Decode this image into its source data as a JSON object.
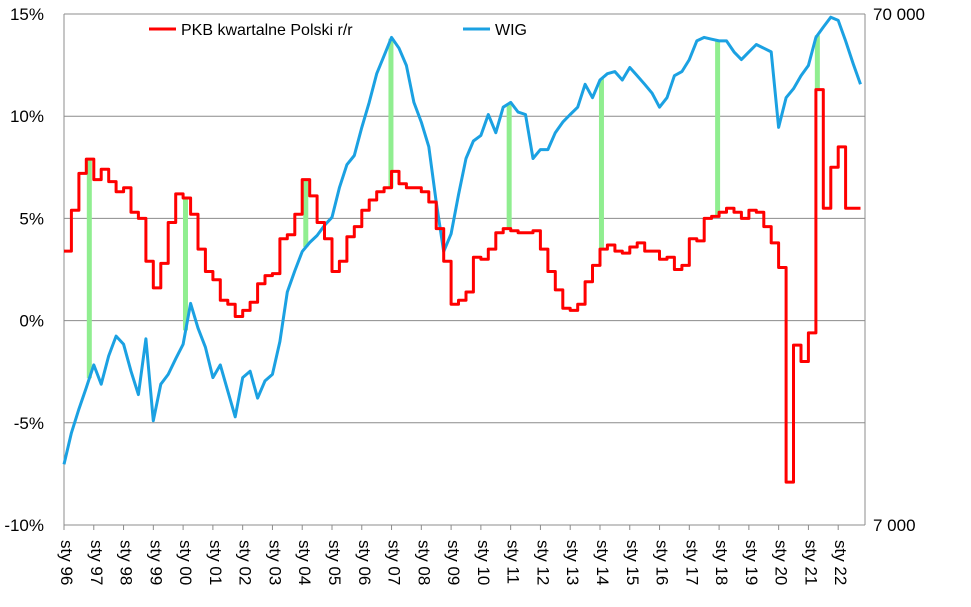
{
  "chart_data": {
    "type": "line",
    "title": "",
    "legend": [
      {
        "name": "PKB kwartalne Polski r/r",
        "color": "#ff0000"
      },
      {
        "name": "WIG",
        "color": "#1ba1e2"
      }
    ],
    "legend_placement": "top",
    "left_axis": {
      "ylim": [
        -10,
        15
      ],
      "ticks": [
        "-10%",
        "-5%",
        "0%",
        "5%",
        "10%",
        "15%"
      ],
      "tick_values": [
        -10,
        -5,
        0,
        5,
        10,
        15
      ]
    },
    "right_axis": {
      "scale": "log",
      "ylim": [
        7000,
        70000
      ],
      "ticks": [
        "7 000",
        "70 000"
      ],
      "tick_values": [
        7000,
        70000
      ]
    },
    "x_axis": {
      "range": [
        1996.0,
        2022.9
      ],
      "ticks": [
        "sty 96",
        "sty 97",
        "sty 98",
        "sty 99",
        "sty 00",
        "sty 01",
        "sty 02",
        "sty 03",
        "sty 04",
        "sty 05",
        "sty 06",
        "sty 07",
        "sty 08",
        "sty 09",
        "sty 10",
        "sty 11",
        "sty 12",
        "sty 13",
        "sty 14",
        "sty 15",
        "sty 16",
        "sty 17",
        "sty 18",
        "sty 19",
        "sty 20",
        "sty 21",
        "sty 22"
      ],
      "tick_values": [
        1996,
        1997,
        1998,
        1999,
        2000,
        2001,
        2002,
        2003,
        2004,
        2005,
        2006,
        2007,
        2008,
        2009,
        2010,
        2011,
        2012,
        2013,
        2014,
        2015,
        2016,
        2017,
        2018,
        2019,
        2020,
        2021,
        2022
      ]
    },
    "grid": "horizontal",
    "series": [
      {
        "name": "PKB kwartalne Polski r/r",
        "axis": "left",
        "color": "#ff0000",
        "step": true,
        "x": [
          1996.0,
          1996.25,
          1996.5,
          1996.75,
          1997.0,
          1997.25,
          1997.5,
          1997.75,
          1998.0,
          1998.25,
          1998.5,
          1998.75,
          1999.0,
          1999.25,
          1999.5,
          1999.75,
          2000.0,
          2000.25,
          2000.5,
          2000.75,
          2001.0,
          2001.25,
          2001.5,
          2001.75,
          2002.0,
          2002.25,
          2002.5,
          2002.75,
          2003.0,
          2003.25,
          2003.5,
          2003.75,
          2004.0,
          2004.25,
          2004.5,
          2004.75,
          2005.0,
          2005.25,
          2005.5,
          2005.75,
          2006.0,
          2006.25,
          2006.5,
          2006.75,
          2007.0,
          2007.25,
          2007.5,
          2007.75,
          2008.0,
          2008.25,
          2008.5,
          2008.75,
          2009.0,
          2009.25,
          2009.5,
          2009.75,
          2010.0,
          2010.25,
          2010.5,
          2010.75,
          2011.0,
          2011.25,
          2011.5,
          2011.75,
          2012.0,
          2012.25,
          2012.5,
          2012.75,
          2013.0,
          2013.25,
          2013.5,
          2013.75,
          2014.0,
          2014.25,
          2014.5,
          2014.75,
          2015.0,
          2015.25,
          2015.5,
          2015.75,
          2016.0,
          2016.25,
          2016.5,
          2016.75,
          2017.0,
          2017.25,
          2017.5,
          2017.75,
          2018.0,
          2018.25,
          2018.5,
          2018.75,
          2019.0,
          2019.25,
          2019.5,
          2019.75,
          2020.0,
          2020.25,
          2020.5,
          2020.75,
          2021.0,
          2021.25,
          2021.5,
          2021.75,
          2022.0,
          2022.25,
          2022.5
        ],
        "values": [
          3.4,
          5.4,
          7.2,
          7.9,
          6.9,
          7.4,
          6.8,
          6.3,
          6.5,
          5.3,
          5.0,
          2.9,
          1.6,
          2.8,
          4.8,
          6.2,
          6.0,
          5.2,
          3.5,
          2.4,
          2.0,
          1.0,
          0.8,
          0.2,
          0.5,
          0.9,
          1.8,
          2.2,
          2.3,
          4.0,
          4.2,
          5.2,
          6.9,
          6.1,
          4.8,
          4.0,
          2.4,
          2.9,
          4.1,
          4.6,
          5.4,
          5.9,
          6.3,
          6.5,
          7.3,
          6.7,
          6.5,
          6.5,
          6.3,
          5.8,
          4.5,
          2.9,
          0.8,
          1.0,
          1.4,
          3.1,
          3.0,
          3.5,
          4.3,
          4.5,
          4.4,
          4.3,
          4.3,
          4.4,
          3.5,
          2.4,
          1.5,
          0.6,
          0.5,
          0.8,
          1.9,
          2.7,
          3.5,
          3.7,
          3.4,
          3.3,
          3.6,
          3.8,
          3.4,
          3.4,
          3.0,
          3.1,
          2.5,
          2.7,
          4.0,
          3.9,
          5.0,
          5.1,
          5.3,
          5.5,
          5.3,
          5.0,
          5.4,
          5.3,
          4.6,
          3.8,
          2.6,
          -7.9,
          -1.2,
          -2.0,
          -0.6,
          11.3,
          5.5,
          7.5,
          8.5,
          5.5,
          5.5
        ]
      },
      {
        "name": "WIG",
        "axis": "right",
        "color": "#1ba1e2",
        "x": [
          1996.0,
          1996.25,
          1996.5,
          1996.75,
          1997.0,
          1997.25,
          1997.5,
          1997.75,
          1998.0,
          1998.25,
          1998.5,
          1998.75,
          1999.0,
          1999.25,
          1999.5,
          1999.75,
          2000.0,
          2000.25,
          2000.5,
          2000.75,
          2001.0,
          2001.25,
          2001.5,
          2001.75,
          2002.0,
          2002.25,
          2002.5,
          2002.75,
          2003.0,
          2003.25,
          2003.5,
          2003.75,
          2004.0,
          2004.25,
          2004.5,
          2004.75,
          2005.0,
          2005.25,
          2005.5,
          2005.75,
          2006.0,
          2006.25,
          2006.5,
          2006.75,
          2007.0,
          2007.25,
          2007.5,
          2007.75,
          2008.0,
          2008.25,
          2008.5,
          2008.75,
          2009.0,
          2009.25,
          2009.5,
          2009.75,
          2010.0,
          2010.25,
          2010.5,
          2010.75,
          2011.0,
          2011.25,
          2011.5,
          2011.75,
          2012.0,
          2012.25,
          2012.5,
          2012.75,
          2013.0,
          2013.25,
          2013.5,
          2013.75,
          2014.0,
          2014.25,
          2014.5,
          2014.75,
          2015.0,
          2015.25,
          2015.5,
          2015.75,
          2016.0,
          2016.25,
          2016.5,
          2016.75,
          2017.0,
          2017.25,
          2017.5,
          2017.75,
          2018.0,
          2018.25,
          2018.5,
          2018.75,
          2019.0,
          2019.25,
          2019.5,
          2019.75,
          2020.0,
          2020.25,
          2020.5,
          2020.75,
          2021.0,
          2021.25,
          2021.5,
          2021.75,
          2022.0,
          2022.25,
          2022.5,
          2022.75
        ],
        "values": [
          9200,
          10600,
          11800,
          13000,
          14400,
          13200,
          15000,
          16400,
          15800,
          14000,
          12600,
          16200,
          11200,
          13200,
          13800,
          14800,
          15800,
          19000,
          17000,
          15600,
          13600,
          14400,
          12800,
          11400,
          13600,
          14000,
          12400,
          13400,
          13800,
          16000,
          20000,
          22000,
          24000,
          25000,
          25800,
          27000,
          28000,
          32000,
          35500,
          37000,
          42000,
          47000,
          53500,
          58000,
          63000,
          60000,
          55500,
          47000,
          43000,
          38500,
          30000,
          24000,
          26000,
          31000,
          36500,
          39500,
          40500,
          44500,
          41000,
          46000,
          47000,
          45000,
          44500,
          36500,
          38000,
          38000,
          41000,
          43000,
          44500,
          46000,
          51000,
          48000,
          52000,
          53500,
          54000,
          52000,
          55000,
          53000,
          51000,
          49000,
          46000,
          48000,
          53000,
          54000,
          57000,
          62000,
          63000,
          62500,
          62000,
          62000,
          59000,
          57000,
          59000,
          61000,
          60000,
          59000,
          42000,
          48000,
          50000,
          53000,
          55500,
          63000,
          66000,
          69000,
          68000,
          62000,
          56000,
          51000
        ]
      }
    ],
    "highlight_bars": {
      "color": "#90ee90",
      "x": [
        1996.85,
        2000.08,
        2004.12,
        2006.98,
        2010.95,
        2014.05,
        2017.95,
        2021.3
      ]
    }
  }
}
